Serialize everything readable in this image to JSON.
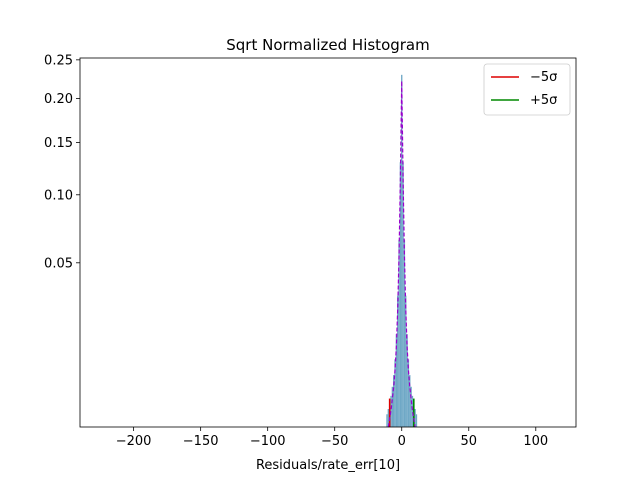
{
  "chart_data": {
    "type": "bar",
    "title": "Sqrt Normalized Histogram",
    "xlabel": "Residuals/rate_err[10]",
    "ylabel": "",
    "xlim": [
      -240,
      130
    ],
    "ylim": [
      0,
      0.25
    ],
    "y_scale": "sqrt",
    "grid": false,
    "legend_position": "top-right",
    "x_ticks": [
      -200,
      -150,
      -100,
      -50,
      0,
      50,
      100
    ],
    "x_tick_labels": [
      "−200",
      "−150",
      "−100",
      "−50",
      "0",
      "50",
      "100"
    ],
    "y_ticks": [
      0.05,
      0.1,
      0.15,
      0.2,
      0.25
    ],
    "y_tick_labels": [
      "0.05",
      "0.10",
      "0.15",
      "0.20",
      "0.25"
    ],
    "histogram": {
      "color": "#6fa8c6",
      "bin_width": 1,
      "bins": [
        {
          "x": -11,
          "y": 0.0003
        },
        {
          "x": -10,
          "y": 0.0006
        },
        {
          "x": -9,
          "y": 0.001
        },
        {
          "x": -8,
          "y": 0.0018
        },
        {
          "x": -7,
          "y": 0.003
        },
        {
          "x": -6,
          "y": 0.005
        },
        {
          "x": -5,
          "y": 0.0085
        },
        {
          "x": -4,
          "y": 0.016
        },
        {
          "x": -3,
          "y": 0.032
        },
        {
          "x": -2,
          "y": 0.065
        },
        {
          "x": -1,
          "y": 0.13
        },
        {
          "x": 0,
          "y": 0.23
        },
        {
          "x": 1,
          "y": 0.13
        },
        {
          "x": 2,
          "y": 0.065
        },
        {
          "x": 3,
          "y": 0.032
        },
        {
          "x": 4,
          "y": 0.016
        },
        {
          "x": 5,
          "y": 0.0085
        },
        {
          "x": 6,
          "y": 0.005
        },
        {
          "x": 7,
          "y": 0.003
        },
        {
          "x": 8,
          "y": 0.0018
        },
        {
          "x": 9,
          "y": 0.001
        },
        {
          "x": 10,
          "y": 0.0006
        },
        {
          "x": 11,
          "y": 0.0003
        }
      ]
    },
    "fit_curve": {
      "color": "#9900cc",
      "style": "dashed",
      "x": [
        -10,
        -8,
        -6,
        -5,
        -4,
        -3,
        -2,
        -1,
        -0.5,
        0,
        0.5,
        1,
        2,
        3,
        4,
        5,
        6,
        8,
        10
      ],
      "y": [
        0.0,
        0.0005,
        0.003,
        0.006,
        0.012,
        0.026,
        0.055,
        0.115,
        0.165,
        0.222,
        0.165,
        0.115,
        0.055,
        0.026,
        0.012,
        0.006,
        0.003,
        0.0005,
        0.0
      ]
    },
    "vlines": [
      {
        "label": "−5σ",
        "x": -9,
        "y_top": 0.0015,
        "color": "#dd0000"
      },
      {
        "label": "+5σ",
        "x": 9,
        "y_top": 0.0015,
        "color": "#008800"
      }
    ]
  }
}
